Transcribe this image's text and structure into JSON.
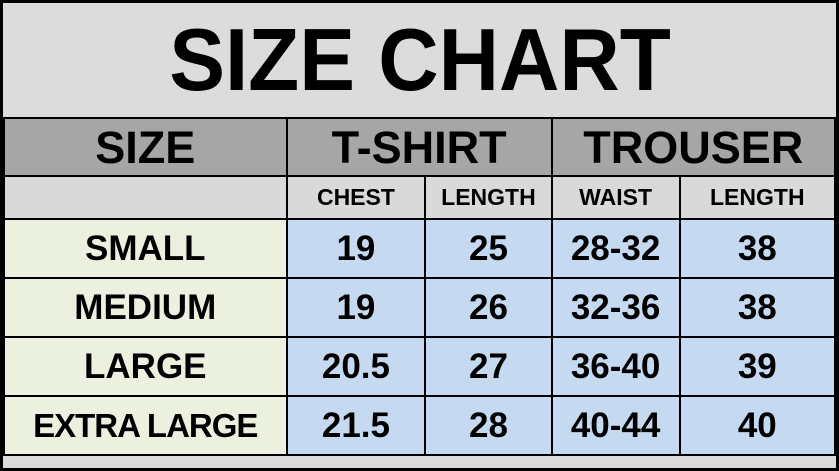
{
  "title": "SIZE CHART",
  "table": {
    "group_headers": {
      "size": "SIZE",
      "tshirt": "T-SHIRT",
      "trouser": "TROUSER"
    },
    "sub_headers": {
      "tshirt_chest": "CHEST",
      "tshirt_length": "LENGTH",
      "trouser_waist": "WAIST",
      "trouser_length": "LENGTH"
    },
    "rows": [
      {
        "size": "SMALL",
        "tshirt_chest": "19",
        "tshirt_length": "25",
        "trouser_waist": "28-32",
        "trouser_length": "38"
      },
      {
        "size": "MEDIUM",
        "tshirt_chest": "19",
        "tshirt_length": "26",
        "trouser_waist": "32-36",
        "trouser_length": "38"
      },
      {
        "size": "LARGE",
        "tshirt_chest": "20.5",
        "tshirt_length": "27",
        "trouser_waist": "36-40",
        "trouser_length": "39"
      },
      {
        "size": "EXTRA LARGE",
        "tshirt_chest": "21.5",
        "tshirt_length": "28",
        "trouser_waist": "40-44",
        "trouser_length": "40"
      }
    ]
  },
  "colors": {
    "title_bg": "#dcdcdc",
    "group_header_bg": "#a6a6a6",
    "sub_header_bg": "#d9d9d9",
    "size_column_bg": "#ebf1de",
    "data_cell_bg": "#c5d9f1",
    "border": "#000000",
    "text": "#000000"
  },
  "chart_data": {
    "type": "table",
    "title": "SIZE CHART",
    "column_groups": [
      "SIZE",
      "T-SHIRT",
      "TROUSER"
    ],
    "columns": [
      "SIZE",
      "T-SHIRT CHEST",
      "T-SHIRT LENGTH",
      "TROUSER WAIST",
      "TROUSER LENGTH"
    ],
    "rows": [
      [
        "SMALL",
        "19",
        "25",
        "28-32",
        "38"
      ],
      [
        "MEDIUM",
        "19",
        "26",
        "32-36",
        "38"
      ],
      [
        "LARGE",
        "20.5",
        "27",
        "36-40",
        "39"
      ],
      [
        "EXTRA LARGE",
        "21.5",
        "28",
        "40-44",
        "40"
      ]
    ],
    "layout": {
      "grid": true,
      "header_rows": 2,
      "header_column": true
    }
  }
}
